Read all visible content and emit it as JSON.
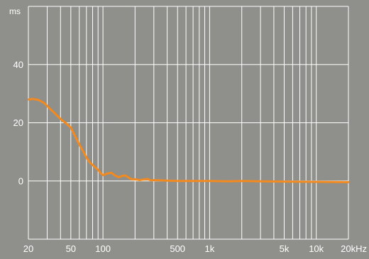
{
  "colors": {
    "background": "#8f8f8b",
    "grid": "#ffffff",
    "series": "#f28a1f",
    "text": "#ffffff"
  },
  "chart_data": {
    "type": "line",
    "title": "",
    "xlabel": "",
    "ylabel": "",
    "y_unit_label": "ms",
    "x_scale": "log",
    "xlim": [
      20,
      20000
    ],
    "ylim": [
      -20,
      60
    ],
    "grid": true,
    "x_ticks": [
      {
        "value": 20,
        "label": "20"
      },
      {
        "value": 50,
        "label": "50"
      },
      {
        "value": 100,
        "label": "100"
      },
      {
        "value": 500,
        "label": "500"
      },
      {
        "value": 1000,
        "label": "1k"
      },
      {
        "value": 5000,
        "label": "5k"
      },
      {
        "value": 10000,
        "label": "10k"
      },
      {
        "value": 20000,
        "label": "20kHz"
      }
    ],
    "x_gridlines": [
      20,
      30,
      40,
      50,
      60,
      70,
      80,
      90,
      100,
      200,
      300,
      400,
      500,
      600,
      700,
      800,
      900,
      1000,
      2000,
      3000,
      4000,
      5000,
      6000,
      7000,
      8000,
      9000,
      10000,
      20000
    ],
    "y_ticks": [
      {
        "value": 0,
        "label": "0"
      },
      {
        "value": 20,
        "label": "20"
      },
      {
        "value": 40,
        "label": "40"
      }
    ],
    "y_gridlines": [
      -20,
      0,
      20,
      40,
      60
    ],
    "series": [
      {
        "x": [
          20,
          22,
          25,
          28,
          31,
          35,
          40,
          45,
          50,
          55,
          60,
          65,
          70,
          75,
          80,
          85,
          90,
          95,
          100,
          110,
          120,
          130,
          140,
          150,
          160,
          170,
          180,
          190,
          200,
          220,
          240,
          260,
          280,
          300,
          350,
          400,
          500,
          700,
          1000,
          1500,
          2000,
          3000,
          5000,
          10000,
          20000
        ],
        "y": [
          28,
          28.2,
          27.8,
          26.8,
          25.2,
          23.4,
          21.3,
          19.8,
          18.3,
          15.3,
          12.5,
          10.2,
          8.0,
          6.4,
          5.5,
          4.6,
          3.8,
          2.7,
          2.0,
          2.6,
          2.8,
          1.8,
          1.3,
          1.7,
          1.9,
          1.4,
          0.8,
          0.5,
          0.6,
          0.3,
          0.5,
          0.7,
          0.2,
          0.3,
          0.2,
          0.1,
          0.0,
          0.0,
          0.0,
          -0.1,
          0.0,
          -0.1,
          -0.2,
          -0.3,
          -0.4
        ]
      }
    ]
  }
}
